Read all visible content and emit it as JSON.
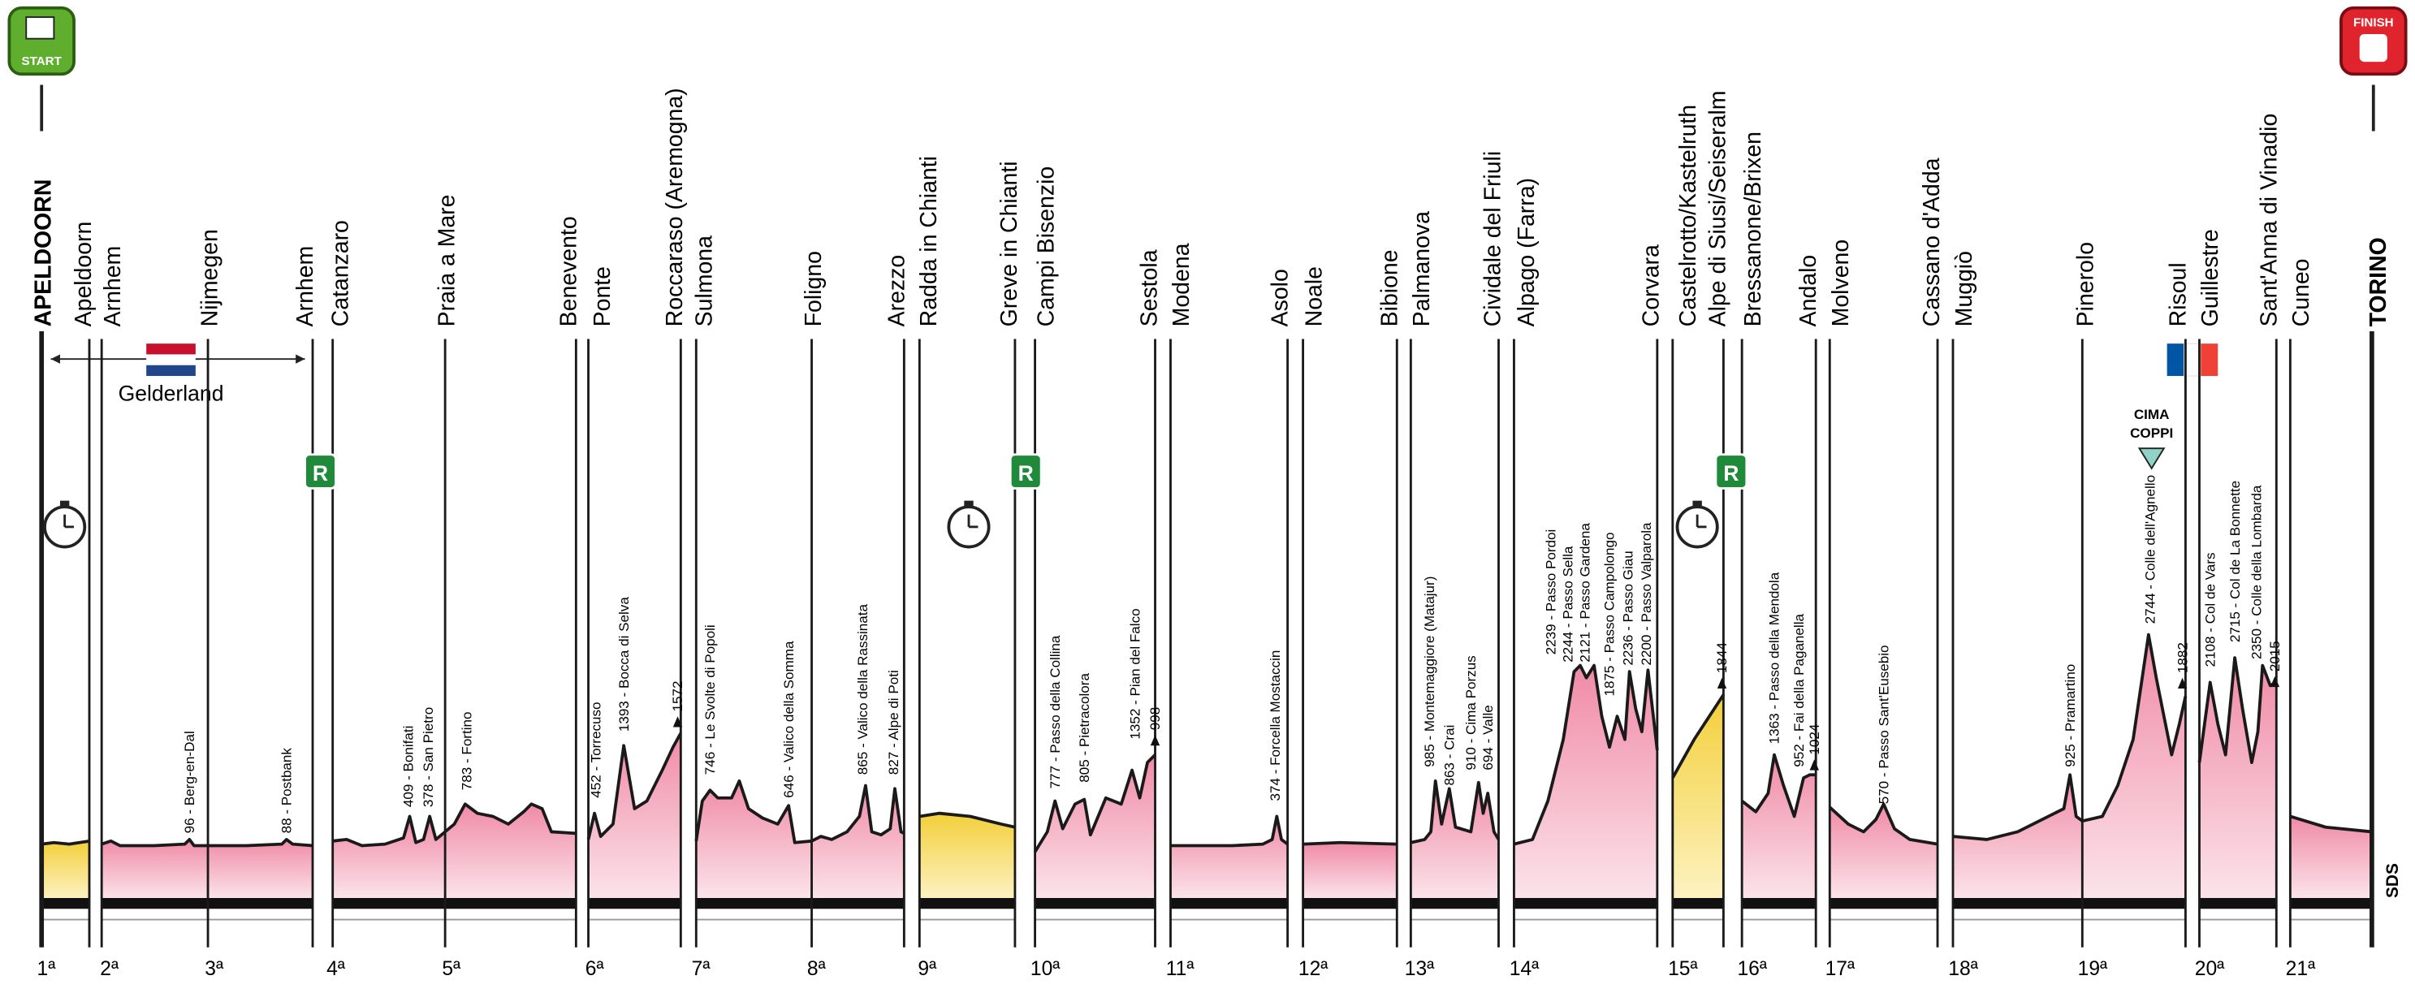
{
  "header": {
    "start": "START",
    "finish": "FINISH"
  },
  "places": [
    "APELDOORN",
    "Apeldoorn",
    "Arnhem",
    "Nijmegen",
    "Arnhem",
    "Catanzaro",
    "Praia a Mare",
    "Benevento",
    "Ponte",
    "Roccaraso (Aremogna)",
    "Sulmona",
    "Foligno",
    "Arezzo",
    "Radda in Chianti",
    "Greve in Chianti",
    "Campi Bisenzio",
    "Sestola",
    "Modena",
    "Asolo",
    "Noale",
    "Bibione",
    "Palmanova",
    "Cividale del Friuli",
    "Alpago (Farra)",
    "Corvara",
    "Castelrotto/Kastelruth",
    "Alpe di Siusi/Seiseralm",
    "Bressanone/Brixen",
    "Andalo",
    "Molveno",
    "Cassano d'Adda",
    "Muggiò",
    "Pinerolo",
    "Risoul",
    "Guillestre",
    "Sant'Anna di Vinadio",
    "Cuneo",
    "TORINO"
  ],
  "stages": [
    "1ª",
    "2ª",
    "3ª",
    "4ª",
    "5ª",
    "6ª",
    "7ª",
    "8ª",
    "9ª",
    "10ª",
    "11ª",
    "12ª",
    "13ª",
    "14ª",
    "15ª",
    "16ª",
    "17ª",
    "18ª",
    "19ª",
    "20ª",
    "21ª"
  ],
  "climbs": [
    "96 - Berg-en-Dal",
    "88 - Postbank",
    "409 - Bonifati",
    "378 - San Pietro",
    "783 - Fortino",
    "452 - Torrecuso",
    "1393 - Bocca di Selva",
    "1572",
    "746 - Le Svolte di Popoli",
    "646 - Valico della Somma",
    "865 - Valico della Rassinata",
    "827 - Alpe di Poti",
    "777 - Passo della Collina",
    "805 - Pietracolora",
    "1352 - Pian del Falco",
    "998",
    "374 - Forcella Mostaccin",
    "985 - Montemaggiore (Matajur)",
    "863 - Crai",
    "910 - Cima Porzus",
    "694 - Valle",
    "2239 - Passo Pordoi",
    "2244 - Passo Sella",
    "2121 - Passo Gardena",
    "1875 - Passo Campolongo",
    "2236 - Passo Giau",
    "2200 - Passo Valparola",
    "1844",
    "1363 - Passo della Mendola",
    "952 - Fai della Paganella",
    "1024",
    "570 - Passo Sant'Eusebio",
    "925 - Pramartino",
    "2744 - Colle dell'Agnello",
    "1882",
    "2108 - Col de Vars",
    "2715 - Col de La Bonnette",
    "2350 - Colle della Lombarda",
    "2015"
  ],
  "region": "Gelderland",
  "cima_coppi": [
    "CIMA",
    "COPPI"
  ],
  "rest_badge": "R",
  "credit": "SDS"
}
